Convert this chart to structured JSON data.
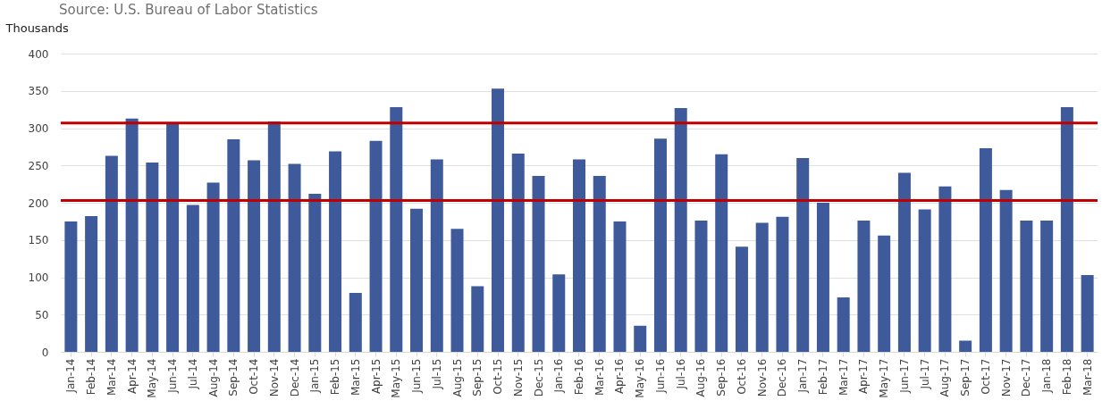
{
  "chart_data": {
    "type": "bar",
    "ylabel": "Thousands",
    "annotations": [
      "Source: U.S. Bureau of Labor Statistics"
    ],
    "categories": [
      "Jan-14",
      "Feb-14",
      "Mar-14",
      "Apr-14",
      "May-14",
      "Jun-14",
      "Jul-14",
      "Aug-14",
      "Sep-14",
      "Oct-14",
      "Nov-14",
      "Dec-14",
      "Jan-15",
      "Feb-15",
      "Mar-15",
      "Apr-15",
      "May-15",
      "Jun-15",
      "Jul-15",
      "Aug-15",
      "Sep-15",
      "Oct-15",
      "Nov-15",
      "Dec-15",
      "Jan-16",
      "Feb-16",
      "Mar-16",
      "Apr-16",
      "May-16",
      "Jun-16",
      "Jul-16",
      "Aug-16",
      "Sep-16",
      "Oct-16",
      "Nov-16",
      "Dec-16",
      "Jan-17",
      "Feb-17",
      "Mar-17",
      "Apr-17",
      "May-17",
      "Jun-17",
      "Jul-17",
      "Aug-17",
      "Sep-17",
      "Oct-17",
      "Nov-17",
      "Dec-17",
      "Jan-18",
      "Feb-18",
      "Mar-18"
    ],
    "values": [
      175,
      182,
      263,
      313,
      254,
      307,
      197,
      227,
      285,
      257,
      309,
      252,
      212,
      269,
      79,
      283,
      328,
      192,
      258,
      165,
      88,
      353,
      266,
      236,
      104,
      258,
      236,
      175,
      35,
      286,
      327,
      176,
      265,
      141,
      173,
      181,
      260,
      200,
      73,
      176,
      156,
      240,
      191,
      222,
      15,
      273,
      217,
      176,
      176,
      328,
      103
    ],
    "color": "#3f5a9a",
    "ylim": [
      0,
      400
    ],
    "yticks": [
      0,
      50,
      100,
      150,
      200,
      250,
      300,
      350,
      400
    ],
    "grid": "y",
    "ref_lines": [
      {
        "axis": "y",
        "value": 307,
        "color": "#c00000"
      },
      {
        "axis": "y",
        "value": 203,
        "color": "#c00000"
      }
    ]
  }
}
